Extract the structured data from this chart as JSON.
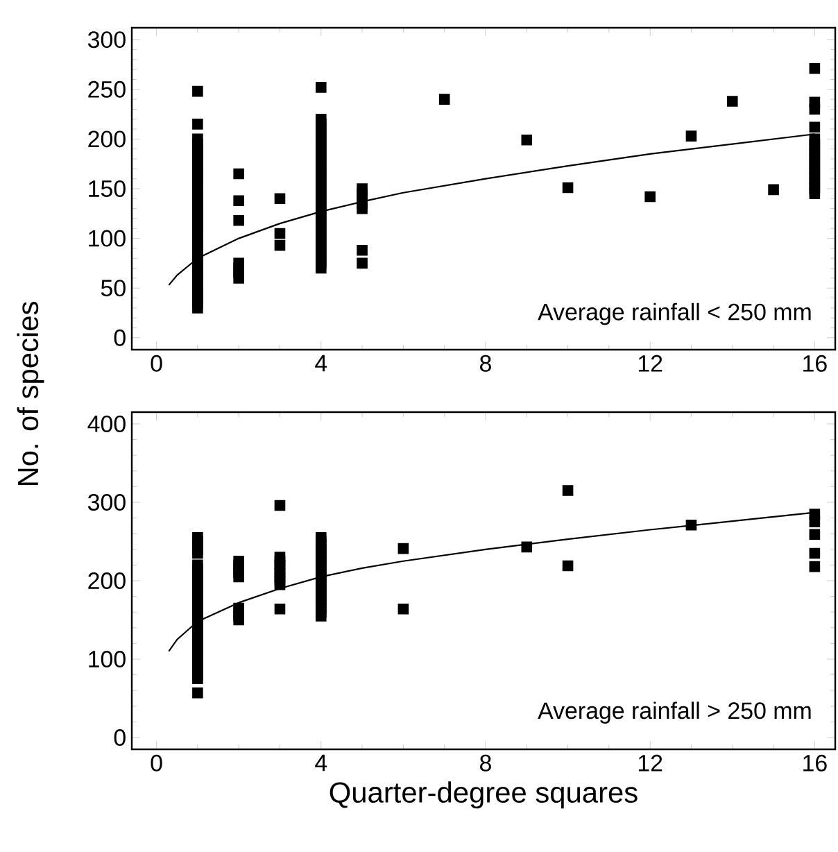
{
  "chart_data": [
    {
      "type": "scatter",
      "ylabel": "No. of species",
      "marker": "square",
      "xlim": [
        -0.6,
        16.5
      ],
      "ylim": [
        -12,
        312
      ],
      "xticks": [
        0,
        4,
        8,
        12,
        16
      ],
      "yticks": [
        0,
        50,
        100,
        150,
        200,
        250,
        300
      ],
      "annotations": [
        "Average rainfall < 250 mm"
      ],
      "series": [
        {
          "color": "#000000",
          "x": [
            1,
            1,
            1,
            1,
            1,
            1,
            1,
            1,
            1,
            1,
            1,
            1,
            1,
            1,
            1,
            1,
            1,
            1,
            1,
            1,
            1,
            1,
            1,
            1,
            1,
            1,
            1,
            1,
            1,
            1,
            1,
            1,
            1,
            1,
            1,
            1,
            1,
            2,
            2,
            2,
            2,
            2,
            2,
            2,
            3,
            3,
            3,
            4,
            4,
            4,
            4,
            4,
            4,
            4,
            4,
            4,
            4,
            4,
            4,
            4,
            4,
            4,
            4,
            4,
            4,
            4,
            4,
            4,
            4,
            4,
            4,
            4,
            4,
            4,
            4,
            4,
            4,
            4,
            4,
            5,
            5,
            5,
            5,
            5,
            5,
            5,
            7,
            9,
            10,
            12,
            13,
            14,
            15,
            16,
            16,
            16,
            16,
            16,
            16,
            16,
            16,
            16,
            16,
            16,
            16,
            16,
            16,
            16,
            16
          ],
          "values": [
            248,
            215,
            30,
            35,
            40,
            45,
            50,
            55,
            60,
            65,
            70,
            75,
            80,
            85,
            90,
            95,
            100,
            105,
            110,
            115,
            120,
            125,
            130,
            135,
            140,
            145,
            150,
            155,
            160,
            165,
            170,
            175,
            180,
            185,
            190,
            195,
            200,
            165,
            138,
            118,
            60,
            65,
            70,
            75,
            140,
            105,
            93,
            252,
            70,
            75,
            80,
            85,
            90,
            95,
            100,
            105,
            110,
            115,
            120,
            125,
            130,
            135,
            140,
            145,
            150,
            155,
            160,
            165,
            170,
            175,
            180,
            185,
            190,
            195,
            200,
            205,
            210,
            215,
            220,
            130,
            135,
            140,
            145,
            150,
            88,
            75,
            240,
            199,
            151,
            142,
            203,
            238,
            149,
            271,
            237,
            230,
            212,
            145,
            150,
            155,
            160,
            165,
            170,
            175,
            180,
            185,
            190,
            195,
            200
          ]
        },
        {
          "type": "line",
          "color": "#000000",
          "line_style": "solid",
          "marker": "none",
          "x": [
            0.3,
            0.5,
            1,
            2,
            3,
            4,
            5,
            6,
            8,
            10,
            12,
            14,
            16
          ],
          "values": [
            53,
            63,
            80,
            100,
            115,
            127,
            137,
            146,
            160,
            173,
            185,
            195,
            205
          ]
        }
      ]
    },
    {
      "type": "scatter",
      "xlabel": "Quarter-degree squares",
      "marker": "square",
      "xlim": [
        -0.6,
        16.5
      ],
      "ylim": [
        -15,
        415
      ],
      "xticks": [
        0,
        4,
        8,
        12,
        16
      ],
      "yticks": [
        0,
        100,
        200,
        300,
        400
      ],
      "annotations": [
        "Average rainfall > 250 mm"
      ],
      "series": [
        {
          "color": "#000000",
          "x": [
            1,
            1,
            1,
            1,
            1,
            1,
            1,
            1,
            1,
            1,
            1,
            1,
            1,
            1,
            1,
            1,
            1,
            1,
            1,
            1,
            1,
            1,
            1,
            1,
            1,
            1,
            1,
            1,
            1,
            1,
            1,
            1,
            1,
            1,
            1,
            1,
            2,
            2,
            2,
            2,
            2,
            2,
            2,
            2,
            2,
            3,
            3,
            3,
            3,
            3,
            3,
            3,
            3,
            3,
            3,
            4,
            4,
            4,
            4,
            4,
            4,
            4,
            4,
            4,
            4,
            4,
            4,
            4,
            4,
            4,
            4,
            4,
            4,
            4,
            4,
            4,
            6,
            6,
            9,
            10,
            10,
            13,
            16,
            16,
            16,
            16,
            16
          ],
          "values": [
            57,
            75,
            80,
            85,
            90,
            95,
            100,
            105,
            110,
            115,
            120,
            125,
            130,
            135,
            140,
            145,
            150,
            155,
            160,
            165,
            170,
            175,
            180,
            185,
            190,
            195,
            200,
            205,
            210,
            215,
            220,
            235,
            240,
            245,
            250,
            255,
            205,
            210,
            215,
            220,
            225,
            150,
            155,
            160,
            165,
            296,
            195,
            200,
            205,
            210,
            215,
            220,
            225,
            230,
            164,
            155,
            160,
            165,
            170,
            175,
            180,
            185,
            190,
            195,
            200,
            205,
            210,
            215,
            220,
            225,
            230,
            235,
            240,
            245,
            250,
            255,
            241,
            164,
            243,
            315,
            219,
            271,
            285,
            275,
            259,
            235,
            218
          ]
        },
        {
          "type": "line",
          "color": "#000000",
          "line_style": "solid",
          "marker": "none",
          "x": [
            0.3,
            0.5,
            1,
            2,
            3,
            4,
            5,
            6,
            8,
            10,
            12,
            14,
            16
          ],
          "values": [
            110,
            125,
            148,
            172,
            190,
            205,
            216,
            225,
            240,
            253,
            265,
            276,
            287
          ]
        }
      ]
    }
  ]
}
